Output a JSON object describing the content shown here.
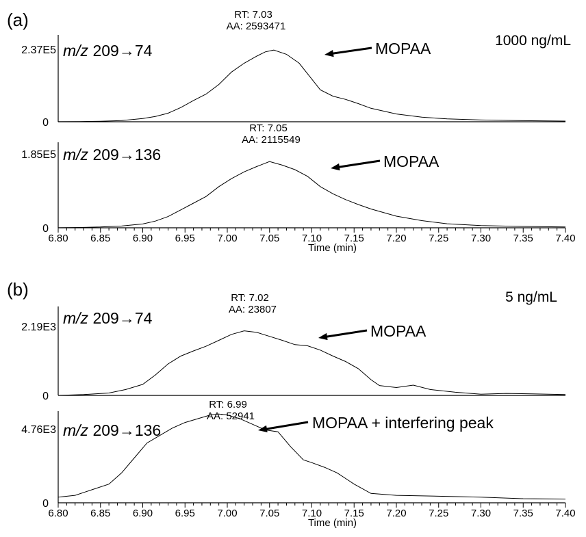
{
  "figure": {
    "panels": [
      {
        "label": "(a)",
        "concentration": "1000 ng/mL"
      },
      {
        "label": "(b)",
        "concentration": "5 ng/mL"
      }
    ]
  },
  "chart_data": [
    {
      "type": "line",
      "panel": "(a)",
      "transition": "209→74",
      "mz_prefix": "m/z",
      "y_max_label": "2.37E5",
      "y_zero_label": "0",
      "ylim": [
        0,
        237000
      ],
      "xlim": [
        6.8,
        7.4
      ],
      "x_ticks": [],
      "xlabel": "",
      "annotation": {
        "rt": "RT: 7.03",
        "aa": "AA: 2593471",
        "compound": "MOPAA",
        "x": 7.03,
        "y": 230000
      },
      "series": [
        {
          "x": [
            6.8,
            6.825,
            6.85,
            6.875,
            6.9,
            6.915,
            6.93,
            6.945,
            6.96,
            6.975,
            6.99,
            7.005,
            7.02,
            7.035,
            7.045,
            7.055,
            7.07,
            7.085,
            7.1,
            7.11,
            7.125,
            7.14,
            7.155,
            7.17,
            7.2,
            7.23,
            7.26,
            7.3,
            7.35,
            7.4
          ],
          "y": [
            100,
            500,
            1500,
            3500,
            9000,
            15000,
            24000,
            40000,
            60000,
            78000,
            105000,
            140000,
            165000,
            185000,
            197000,
            202000,
            190000,
            165000,
            120000,
            90000,
            72000,
            63000,
            51000,
            38000,
            22000,
            13000,
            8000,
            5000,
            3000,
            2000
          ]
        }
      ]
    },
    {
      "type": "line",
      "panel": "(a)",
      "transition": "209→136",
      "mz_prefix": "m/z",
      "y_max_label": "1.85E5",
      "y_zero_label": "0",
      "ylim": [
        0,
        185000
      ],
      "xlim": [
        6.8,
        7.4
      ],
      "x_ticks": [
        6.8,
        6.85,
        6.9,
        6.95,
        7.0,
        7.05,
        7.1,
        7.15,
        7.2,
        7.25,
        7.3,
        7.35,
        7.4
      ],
      "xlabel": "Time (min)",
      "annotation": {
        "rt": "RT: 7.05",
        "aa": "AA: 2115549",
        "compound": "MOPAA",
        "x": 7.05,
        "y": 175000
      },
      "series": [
        {
          "x": [
            6.8,
            6.825,
            6.85,
            6.875,
            6.9,
            6.915,
            6.93,
            6.945,
            6.96,
            6.975,
            6.99,
            7.005,
            7.02,
            7.035,
            7.05,
            7.065,
            7.08,
            7.095,
            7.11,
            7.125,
            7.14,
            7.155,
            7.17,
            7.2,
            7.23,
            7.26,
            7.3,
            7.35,
            7.4
          ],
          "y": [
            200,
            800,
            1800,
            4000,
            8500,
            15000,
            25000,
            40000,
            55000,
            70000,
            92000,
            110000,
            125000,
            137000,
            148000,
            140000,
            130000,
            115000,
            92000,
            76000,
            63000,
            52000,
            42000,
            26000,
            16000,
            9000,
            5000,
            3000,
            2000
          ]
        }
      ]
    },
    {
      "type": "line",
      "panel": "(b)",
      "transition": "209→74",
      "mz_prefix": "m/z",
      "y_max_label": "2.19E3",
      "y_zero_label": "0",
      "ylim": [
        0,
        2190
      ],
      "xlim": [
        6.8,
        7.4
      ],
      "x_ticks": [],
      "xlabel": "",
      "annotation": {
        "rt": "RT: 7.02",
        "aa": "AA: 23807",
        "compound": "MOPAA",
        "x": 7.02,
        "y": 2100
      },
      "series": [
        {
          "x": [
            6.8,
            6.83,
            6.86,
            6.88,
            6.9,
            6.915,
            6.93,
            6.945,
            6.96,
            6.975,
            6.99,
            7.005,
            7.02,
            7.035,
            7.05,
            7.065,
            7.08,
            7.095,
            7.11,
            7.125,
            7.14,
            7.155,
            7.17,
            7.18,
            7.2,
            7.22,
            7.24,
            7.27,
            7.3,
            7.33,
            7.36,
            7.4
          ],
          "y": [
            0,
            20,
            60,
            150,
            280,
            520,
            800,
            1000,
            1130,
            1250,
            1400,
            1550,
            1640,
            1600,
            1500,
            1400,
            1290,
            1260,
            1150,
            1000,
            860,
            680,
            400,
            250,
            200,
            260,
            150,
            80,
            30,
            50,
            40,
            20
          ]
        }
      ]
    },
    {
      "type": "line",
      "panel": "(b)",
      "transition": "209→136",
      "mz_prefix": "m/z",
      "y_max_label": "4.76E3",
      "y_zero_label": "0",
      "ylim": [
        0,
        4760
      ],
      "xlim": [
        6.8,
        7.4
      ],
      "x_ticks": [
        6.8,
        6.85,
        6.9,
        6.95,
        7.0,
        7.05,
        7.1,
        7.15,
        7.2,
        7.25,
        7.3,
        7.35,
        7.4
      ],
      "xlabel": "Time (min)",
      "annotation": {
        "rt": "RT: 6.99",
        "aa": "AA: 52941",
        "compound": "MOPAA + interfering peak",
        "x": 6.99,
        "y": 4700
      },
      "series": [
        {
          "x": [
            6.8,
            6.82,
            6.84,
            6.86,
            6.875,
            6.89,
            6.905,
            6.92,
            6.935,
            6.95,
            6.965,
            6.98,
            6.99,
            7.0,
            7.015,
            7.03,
            7.045,
            7.06,
            7.075,
            7.09,
            7.1,
            7.115,
            7.13,
            7.15,
            7.17,
            7.2,
            7.25,
            7.3,
            7.35,
            7.4
          ],
          "y": [
            300,
            400,
            700,
            1000,
            1600,
            2400,
            3200,
            3600,
            4000,
            4300,
            4500,
            4700,
            4750,
            4700,
            4500,
            4200,
            3900,
            3800,
            3000,
            2300,
            2150,
            1900,
            1600,
            1000,
            500,
            400,
            350,
            300,
            220,
            200
          ]
        }
      ]
    }
  ]
}
